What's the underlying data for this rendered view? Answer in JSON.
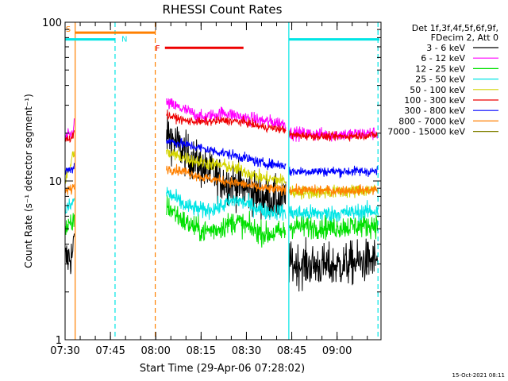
{
  "chart_data": {
    "type": "line",
    "title": "RHESSI Count Rates",
    "xlabel": "Start Time (29-Apr-06 07:28:02)",
    "ylabel": "Count Rate (s⁻¹ detector segment⁻¹)",
    "ylog": true,
    "ylim": [
      1,
      100
    ],
    "xlim_minutes": [
      7.4667,
      112.0
    ],
    "x_ticks": [
      {
        "label": "07:30",
        "t": 7.4667
      },
      {
        "label": "07:45",
        "t": 22.4667
      },
      {
        "label": "08:00",
        "t": 37.4667
      },
      {
        "label": "08:15",
        "t": 52.4667
      },
      {
        "label": "08:30",
        "t": 67.4667
      },
      {
        "label": "08:45",
        "t": 82.4667
      },
      {
        "label": "09:00",
        "t": 97.4667
      }
    ],
    "y_ticks": [
      {
        "label": "1",
        "v": 1
      },
      {
        "label": "10",
        "v": 10
      },
      {
        "label": "100",
        "v": 100
      }
    ],
    "legend_header": [
      "Det 1f,3f,4f,5f,6f,9f,",
      "FDecim 2, Att 0"
    ],
    "legend_placement": "right",
    "series": [
      {
        "name": "3 - 6 keV",
        "color": "#000000"
      },
      {
        "name": "6 - 12 keV",
        "color": "#ff00ff"
      },
      {
        "name": "12 - 25 keV",
        "color": "#00e000"
      },
      {
        "name": "25 - 50 keV",
        "color": "#00e5e5"
      },
      {
        "name": "50 - 100 keV",
        "color": "#d4d400"
      },
      {
        "name": "100 - 300 keV",
        "color": "#ee0000"
      },
      {
        "name": "300 - 800 keV",
        "color": "#0000ff"
      },
      {
        "name": "800 - 7000 keV",
        "color": "#ff8000"
      },
      {
        "name": "7000 - 15000 keV",
        "color": "#808000"
      }
    ],
    "bands": [
      {
        "label": "S",
        "color": "#ff8000",
        "t_start": 10.8,
        "t_end": 37.3,
        "value": 86
      },
      {
        "label": "N",
        "color": "#00e5e5",
        "t_start": 1.0,
        "t_end": 24.0,
        "value": 78
      },
      {
        "label": "",
        "color": "#00e5e5",
        "t_start": 81.5,
        "t_end": 112.0,
        "value": 78
      },
      {
        "label": "F",
        "color": "#ee0000",
        "t_start": 40.5,
        "t_end": 66.5,
        "value": 69
      }
    ],
    "vlines": [
      {
        "t": 10.8,
        "color": "#ff8000",
        "dashed": false
      },
      {
        "t": 37.3,
        "color": "#ff8000",
        "dashed": true
      },
      {
        "t": 24.0,
        "color": "#00e5e5",
        "dashed": true
      },
      {
        "t": 81.5,
        "color": "#00e5e5",
        "dashed": false
      },
      {
        "t": 111.0,
        "color": "#00e5e5",
        "dashed": true
      }
    ]
  },
  "footer": {
    "timestamp": "15-Oct-2021 08:11"
  }
}
